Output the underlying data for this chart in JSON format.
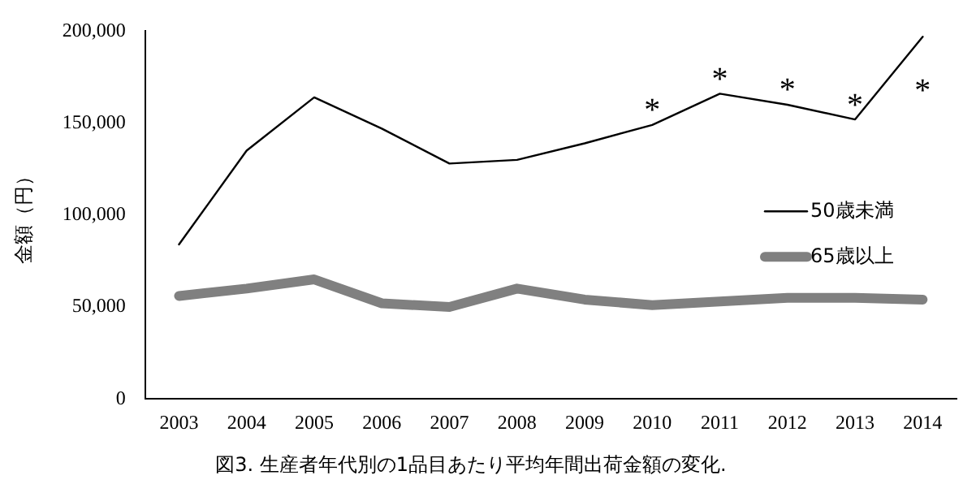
{
  "chart_data": {
    "type": "line",
    "ylabel": "金額（円）",
    "categories": [
      "2003",
      "2004",
      "2005",
      "2006",
      "2007",
      "2008",
      "2009",
      "2010",
      "2011",
      "2012",
      "2013",
      "2014"
    ],
    "series": [
      {
        "name": "50歳未満",
        "color": "#000000",
        "values": [
          84000,
          135000,
          164000,
          147000,
          128000,
          130000,
          139000,
          149000,
          166000,
          160000,
          152000,
          197000
        ]
      },
      {
        "name": "65歳以上",
        "color": "#808080",
        "values": [
          56000,
          60000,
          65000,
          52000,
          50000,
          60000,
          54000,
          51000,
          53000,
          55000,
          55000,
          54000
        ]
      }
    ],
    "ylim": [
      0,
      200000
    ],
    "yticks": [
      {
        "value": 0,
        "label": "0"
      },
      {
        "value": 50000,
        "label": "50,000"
      },
      {
        "value": 100000,
        "label": "100,000"
      },
      {
        "value": 150000,
        "label": "150,000"
      },
      {
        "value": 200000,
        "label": "200,000"
      }
    ],
    "grid": false,
    "legend": "right",
    "marker": "none",
    "line_style": "solid",
    "annotations": [
      {
        "text": "*",
        "x": "2010",
        "y": 149000
      },
      {
        "text": "*",
        "x": "2011",
        "y": 166000
      },
      {
        "text": "*",
        "x": "2012",
        "y": 160000
      },
      {
        "text": "*",
        "x": "2013",
        "y": 152000
      },
      {
        "text": "*",
        "x": "2014",
        "y": 197000
      },
      "図3. 生産者年代別の1品目あたり平均年間出荷金額の変化."
    ]
  }
}
